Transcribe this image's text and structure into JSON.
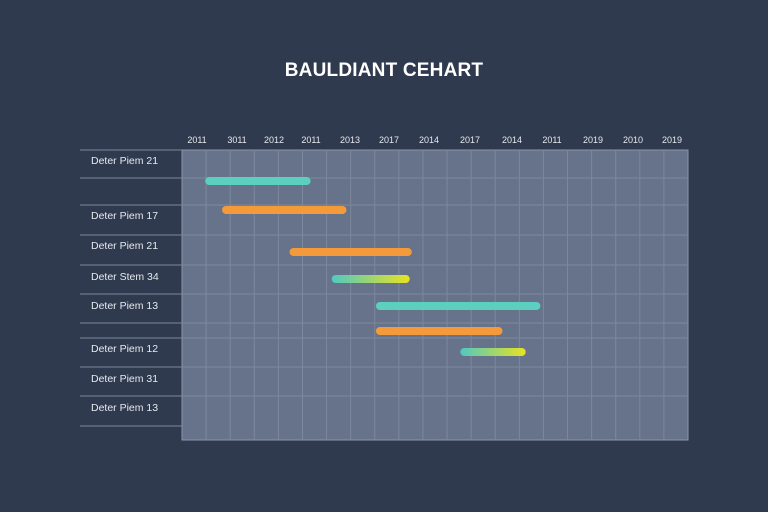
{
  "chart_data": {
    "type": "gantt",
    "title": "BAULDIANT CEHART",
    "x_tick_labels": [
      "2011",
      "3011",
      "2012",
      "2011",
      "2013",
      "2017",
      "2014",
      "2017",
      "2014",
      "2011",
      "2019",
      "2010",
      "2019"
    ],
    "row_labels": [
      "Deter Piem 21",
      "",
      "Deter Piem 17",
      "Deter Piem 21",
      "Deter Stem 34",
      "Deter Piem 13",
      "",
      "Deter Piem 12",
      "Deter Piem 31",
      "Deter Piem 13"
    ],
    "tasks": [
      {
        "row": 1,
        "start": 0.55,
        "end": 3.05,
        "color": "#5ccfbf"
      },
      {
        "row": 2,
        "start": 0.95,
        "end": 3.9,
        "color": "#f59a3b"
      },
      {
        "row": 3,
        "start": 2.55,
        "end": 5.45,
        "color": "#f59a3b"
      },
      {
        "row": 4,
        "start": 3.55,
        "end": 5.4,
        "color": "gradient"
      },
      {
        "row": 5,
        "start": 4.6,
        "end": 8.5,
        "color": "#5ccfbf"
      },
      {
        "row": 6,
        "start": 4.6,
        "end": 7.6,
        "color": "#f59a3b"
      },
      {
        "row": 7,
        "start": 6.6,
        "end": 8.15,
        "color": "gradient"
      }
    ],
    "colors": {
      "background": "#2f3a4e",
      "plot_area": "#67738a",
      "grid": "#7d889c",
      "teal": "#5ccfbf",
      "orange": "#f59a3b",
      "gradient_start": "#52c8c0",
      "gradient_end": "#e8e321"
    },
    "grid": true
  }
}
